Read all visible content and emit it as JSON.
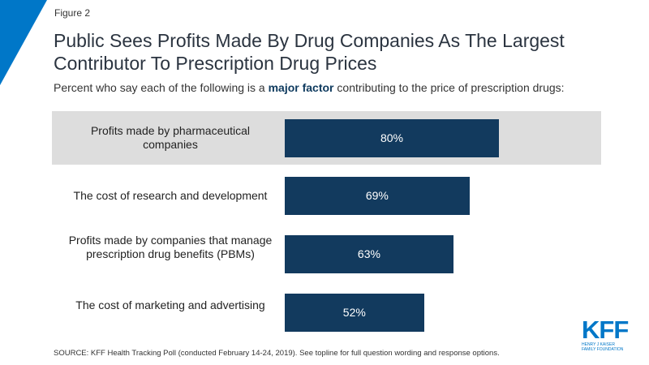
{
  "figure_label": "Figure 2",
  "subtitle_pre": "Percent who say each of the following is a ",
  "subtitle_bold": "major factor",
  "subtitle_post": " contributing to the price of prescription drugs:",
  "source": "SOURCE: KFF Health Tracking Poll (conducted February 14-24, 2019). See topline for full question wording and response options.",
  "logo": {
    "text": "KFF",
    "line1": "HENRY J KAISER",
    "line2": "FAMILY FOUNDATION"
  },
  "colors": {
    "bar": "#123a5e",
    "accent": "#0077c8",
    "highlight": "#dddddd"
  },
  "chart_data": {
    "type": "bar",
    "orientation": "horizontal",
    "title": "Public Sees Profits Made By Drug Companies As The Largest Contributor To Prescription Drug Prices",
    "categories": [
      "Profits made by pharmaceutical companies",
      "The cost of research and development",
      "Profits made by companies that manage prescription drug benefits (PBMs)",
      "The cost of marketing and advertising"
    ],
    "values": [
      80,
      69,
      63,
      52
    ],
    "data_labels": [
      "80%",
      "69%",
      "63%",
      "52%"
    ],
    "highlighted_category": "Profits made by pharmaceutical companies",
    "xlim": [
      0,
      100
    ],
    "grid": false
  }
}
